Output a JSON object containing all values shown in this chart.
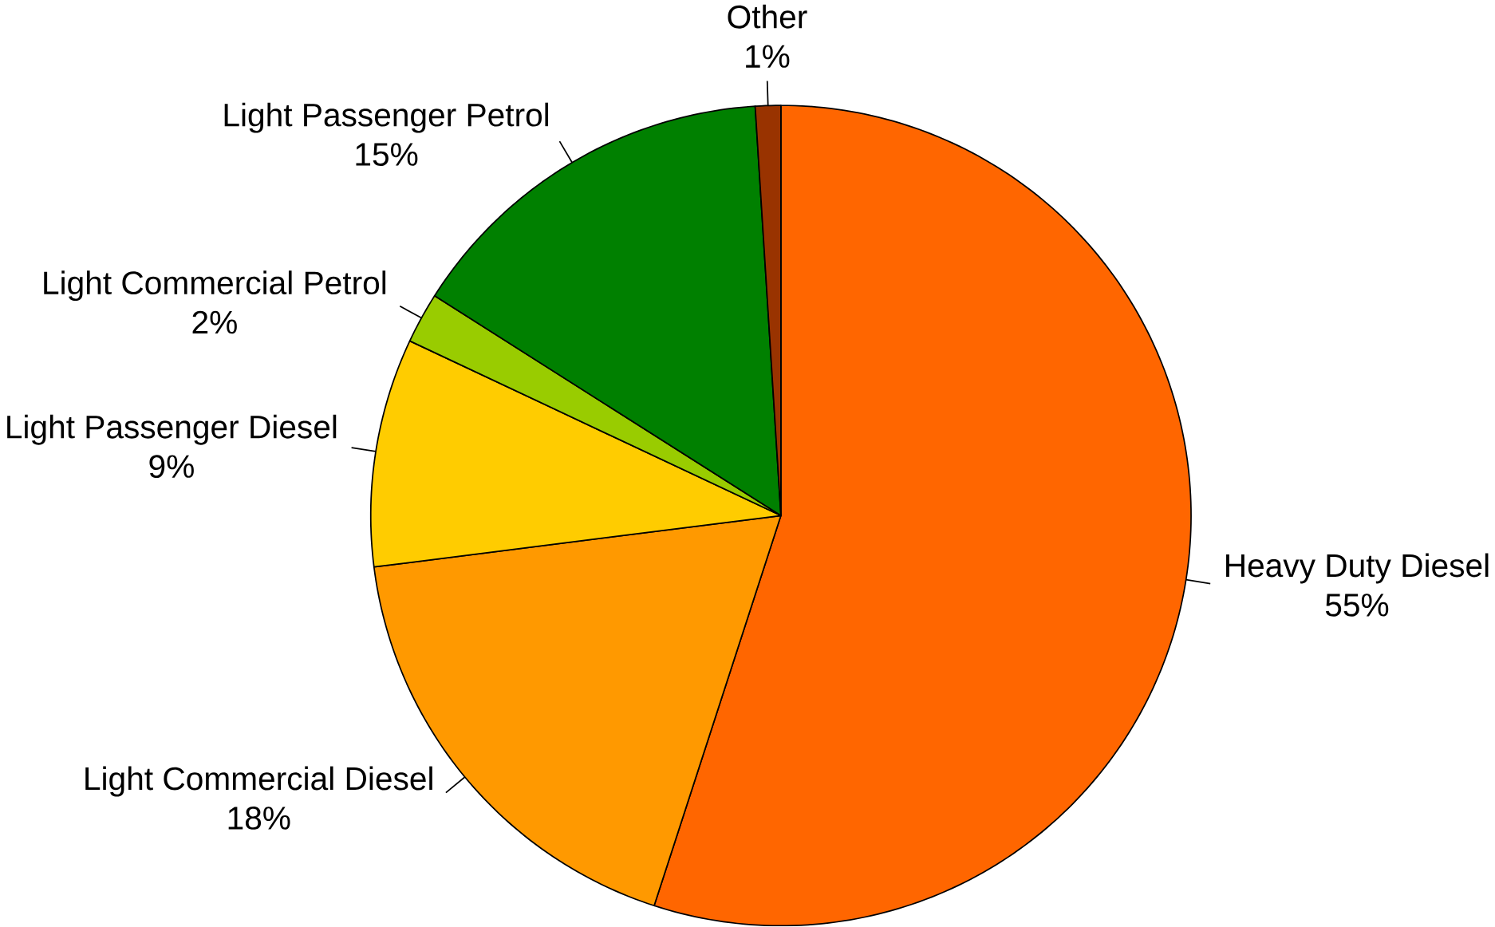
{
  "chart_data": {
    "type": "pie",
    "categories": [
      "Heavy Duty Diesel",
      "Light Commercial Diesel",
      "Light Passenger Diesel",
      "Light Commercial Petrol",
      "Light Passenger Petrol",
      "Other"
    ],
    "values": [
      55,
      18,
      9,
      2,
      15,
      1
    ],
    "value_labels": [
      "55%",
      "18%",
      "9%",
      "2%",
      "15%",
      "1%"
    ],
    "colors": [
      "#ff6600",
      "#ff9900",
      "#ffcc00",
      "#99cc00",
      "#008000",
      "#993300"
    ]
  }
}
